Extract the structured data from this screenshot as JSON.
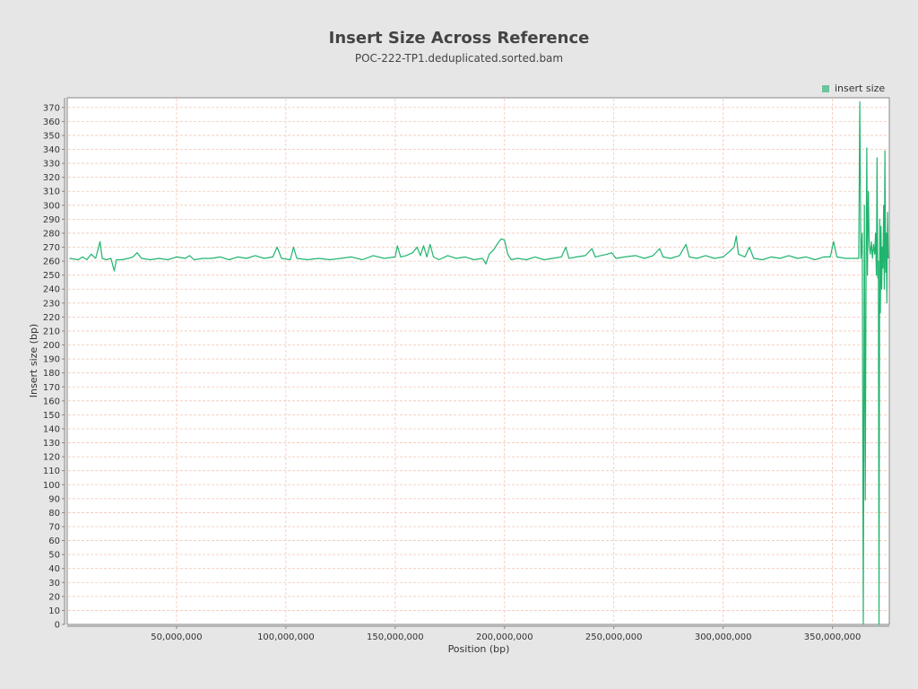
{
  "chart_data": {
    "type": "line",
    "title": "Insert Size Across Reference",
    "subtitle": "POC-222-TP1.deduplicated.sorted.bam",
    "xlabel": "Position (bp)",
    "ylabel": "Insert size (bp)",
    "xlim": [
      0,
      376000000
    ],
    "ylim": [
      0,
      375
    ],
    "x_ticks": [
      50000000,
      100000000,
      150000000,
      200000000,
      250000000,
      300000000,
      350000000
    ],
    "x_tick_labels": [
      "50,000,000",
      "100,000,000",
      "150,000,000",
      "200,000,000",
      "250,000,000",
      "300,000,000",
      "350,000,000"
    ],
    "y_ticks": [
      0,
      10,
      20,
      30,
      40,
      50,
      60,
      70,
      80,
      90,
      100,
      110,
      120,
      130,
      140,
      150,
      160,
      170,
      180,
      190,
      200,
      210,
      220,
      230,
      240,
      250,
      260,
      270,
      280,
      290,
      300,
      310,
      320,
      330,
      340,
      350,
      360,
      370
    ],
    "grid": true,
    "legend_position": "top-right",
    "series": [
      {
        "name": "insert size",
        "color": "#20b46e",
        "points": [
          [
            1000000,
            262
          ],
          [
            5000000,
            261
          ],
          [
            7000000,
            263
          ],
          [
            9000000,
            261
          ],
          [
            11000000,
            265
          ],
          [
            13000000,
            262
          ],
          [
            15000000,
            274
          ],
          [
            16000000,
            262
          ],
          [
            18000000,
            261
          ],
          [
            20000000,
            262
          ],
          [
            21500000,
            253
          ],
          [
            22500000,
            261
          ],
          [
            25000000,
            261
          ],
          [
            28000000,
            262
          ],
          [
            30000000,
            263
          ],
          [
            32000000,
            266
          ],
          [
            34000000,
            262
          ],
          [
            38000000,
            261
          ],
          [
            42000000,
            262
          ],
          [
            46000000,
            261
          ],
          [
            50000000,
            263
          ],
          [
            54000000,
            262
          ],
          [
            56000000,
            264
          ],
          [
            58000000,
            261
          ],
          [
            62000000,
            262
          ],
          [
            66000000,
            262
          ],
          [
            70000000,
            263
          ],
          [
            74000000,
            261
          ],
          [
            78000000,
            263
          ],
          [
            82000000,
            262
          ],
          [
            86000000,
            264
          ],
          [
            90000000,
            262
          ],
          [
            94000000,
            263
          ],
          [
            96000000,
            270
          ],
          [
            98000000,
            262
          ],
          [
            102000000,
            261
          ],
          [
            103500000,
            270
          ],
          [
            105000000,
            262
          ],
          [
            110000000,
            261
          ],
          [
            115000000,
            262
          ],
          [
            120000000,
            261
          ],
          [
            125000000,
            262
          ],
          [
            130000000,
            263
          ],
          [
            135000000,
            261
          ],
          [
            140000000,
            264
          ],
          [
            145000000,
            262
          ],
          [
            150000000,
            263
          ],
          [
            151000000,
            271
          ],
          [
            152500000,
            263
          ],
          [
            155000000,
            264
          ],
          [
            158000000,
            266
          ],
          [
            160000000,
            270
          ],
          [
            161500000,
            264
          ],
          [
            163000000,
            271
          ],
          [
            164500000,
            263
          ],
          [
            166000000,
            272
          ],
          [
            167500000,
            263
          ],
          [
            170000000,
            261
          ],
          [
            174000000,
            264
          ],
          [
            178000000,
            262
          ],
          [
            182000000,
            263
          ],
          [
            186000000,
            261
          ],
          [
            190000000,
            262
          ],
          [
            191500000,
            258
          ],
          [
            193000000,
            265
          ],
          [
            195000000,
            268
          ],
          [
            197000000,
            273
          ],
          [
            198500000,
            276
          ],
          [
            200000000,
            275
          ],
          [
            201500000,
            265
          ],
          [
            203000000,
            261
          ],
          [
            206000000,
            262
          ],
          [
            210000000,
            261
          ],
          [
            214000000,
            263
          ],
          [
            218000000,
            261
          ],
          [
            222000000,
            262
          ],
          [
            226000000,
            263
          ],
          [
            228000000,
            270
          ],
          [
            229500000,
            262
          ],
          [
            233000000,
            263
          ],
          [
            237000000,
            264
          ],
          [
            240000000,
            269
          ],
          [
            241500000,
            263
          ],
          [
            244000000,
            264
          ],
          [
            247000000,
            265
          ],
          [
            249000000,
            266
          ],
          [
            251000000,
            262
          ],
          [
            255000000,
            263
          ],
          [
            260000000,
            264
          ],
          [
            264000000,
            262
          ],
          [
            268000000,
            264
          ],
          [
            271000000,
            269
          ],
          [
            272500000,
            263
          ],
          [
            276000000,
            262
          ],
          [
            280000000,
            264
          ],
          [
            283000000,
            272
          ],
          [
            284500000,
            263
          ],
          [
            288000000,
            262
          ],
          [
            292000000,
            264
          ],
          [
            296000000,
            262
          ],
          [
            300000000,
            263
          ],
          [
            303000000,
            267
          ],
          [
            305000000,
            270
          ],
          [
            306000000,
            278
          ],
          [
            307000000,
            265
          ],
          [
            310000000,
            263
          ],
          [
            312000000,
            270
          ],
          [
            314000000,
            262
          ],
          [
            318000000,
            261
          ],
          [
            322000000,
            263
          ],
          [
            326000000,
            262
          ],
          [
            330000000,
            264
          ],
          [
            334000000,
            262
          ],
          [
            338000000,
            263
          ],
          [
            342000000,
            261
          ],
          [
            346000000,
            263
          ],
          [
            349000000,
            263
          ],
          [
            350500000,
            274
          ],
          [
            352000000,
            263
          ],
          [
            356000000,
            262
          ],
          [
            360000000,
            262
          ],
          [
            362000000,
            262
          ],
          [
            362500000,
            374
          ],
          [
            363000000,
            262
          ],
          [
            363600000,
            280
          ],
          [
            364100000,
            0
          ],
          [
            364600000,
            300
          ],
          [
            365000000,
            89
          ],
          [
            365400000,
            260
          ],
          [
            365700000,
            341
          ],
          [
            366000000,
            250
          ],
          [
            366400000,
            310
          ],
          [
            366800000,
            272
          ],
          [
            367300000,
            265
          ],
          [
            367800000,
            274
          ],
          [
            368300000,
            262
          ],
          [
            368800000,
            272
          ],
          [
            369300000,
            265
          ],
          [
            369700000,
            280
          ],
          [
            370100000,
            250
          ],
          [
            370400000,
            334
          ],
          [
            370700000,
            248
          ],
          [
            371000000,
            260
          ],
          [
            371300000,
            0
          ],
          [
            371600000,
            290
          ],
          [
            371900000,
            223
          ],
          [
            372200000,
            285
          ],
          [
            372500000,
            240
          ],
          [
            372800000,
            270
          ],
          [
            373100000,
            255
          ],
          [
            373400000,
            300
          ],
          [
            373700000,
            240
          ],
          [
            374000000,
            339
          ],
          [
            374300000,
            252
          ],
          [
            374600000,
            280
          ],
          [
            374900000,
            230
          ],
          [
            375200000,
            295
          ],
          [
            375500000,
            262
          ]
        ]
      }
    ]
  }
}
